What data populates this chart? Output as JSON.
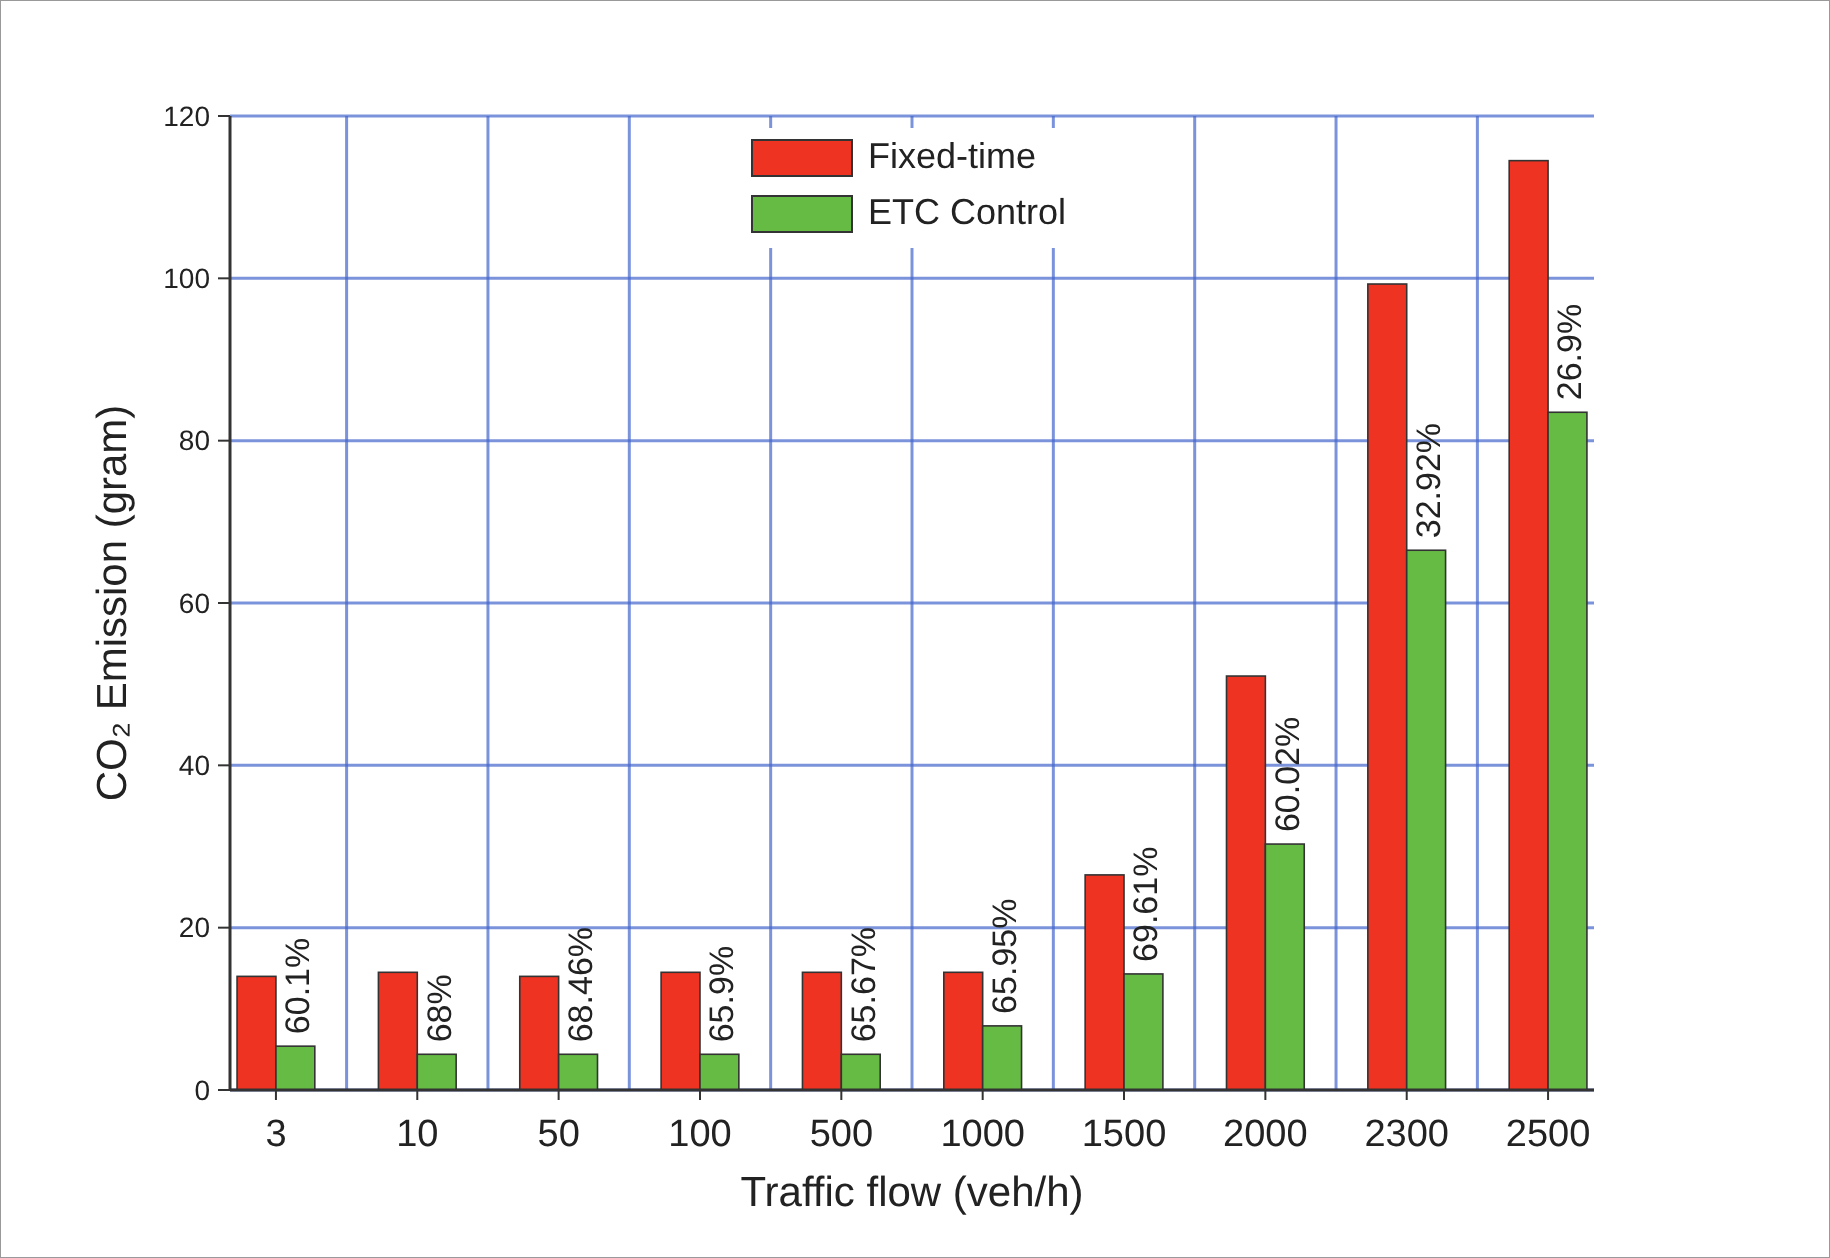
{
  "chart_data": {
    "type": "bar",
    "xlabel": "Traffic flow (veh/h)",
    "ylabel": "CO₂ Emission (gram)",
    "categories": [
      "3",
      "10",
      "50",
      "100",
      "500",
      "1000",
      "1500",
      "2000",
      "2300",
      "2500"
    ],
    "series": [
      {
        "name": "Fixed-time",
        "color": "#ee3322",
        "values": [
          14,
          14.5,
          14,
          14.5,
          14.5,
          14.5,
          26.5,
          51,
          99.3,
          114.5
        ]
      },
      {
        "name": "ETC Control",
        "color": "#66bb44",
        "values": [
          5.4,
          4.4,
          4.4,
          4.4,
          4.4,
          7.9,
          14.3,
          30.3,
          66.5,
          83.5
        ]
      }
    ],
    "annotations": [
      {
        "text": "60.1%",
        "x": "3",
        "y": 5.4
      },
      {
        "text": "68%",
        "x": "10",
        "y": 4.4
      },
      {
        "text": "68.46%",
        "x": "50",
        "y": 4.4
      },
      {
        "text": "65.9%",
        "x": "100",
        "y": 4.4
      },
      {
        "text": "65.67%",
        "x": "500",
        "y": 4.4
      },
      {
        "text": "65.95%",
        "x": "1000",
        "y": 7.9
      },
      {
        "text": "69.61%",
        "x": "1500",
        "y": 14.3
      },
      {
        "text": "60.02%",
        "x": "2000",
        "y": 30.3
      },
      {
        "text": "32.92%",
        "x": "2300",
        "y": 66.5
      },
      {
        "text": "26.9%",
        "x": "2500",
        "y": 83.5
      }
    ],
    "ylim": [
      0,
      120
    ],
    "yticks": [
      0,
      20,
      40,
      60,
      80,
      100,
      120
    ],
    "grid": true,
    "legend": "top"
  }
}
